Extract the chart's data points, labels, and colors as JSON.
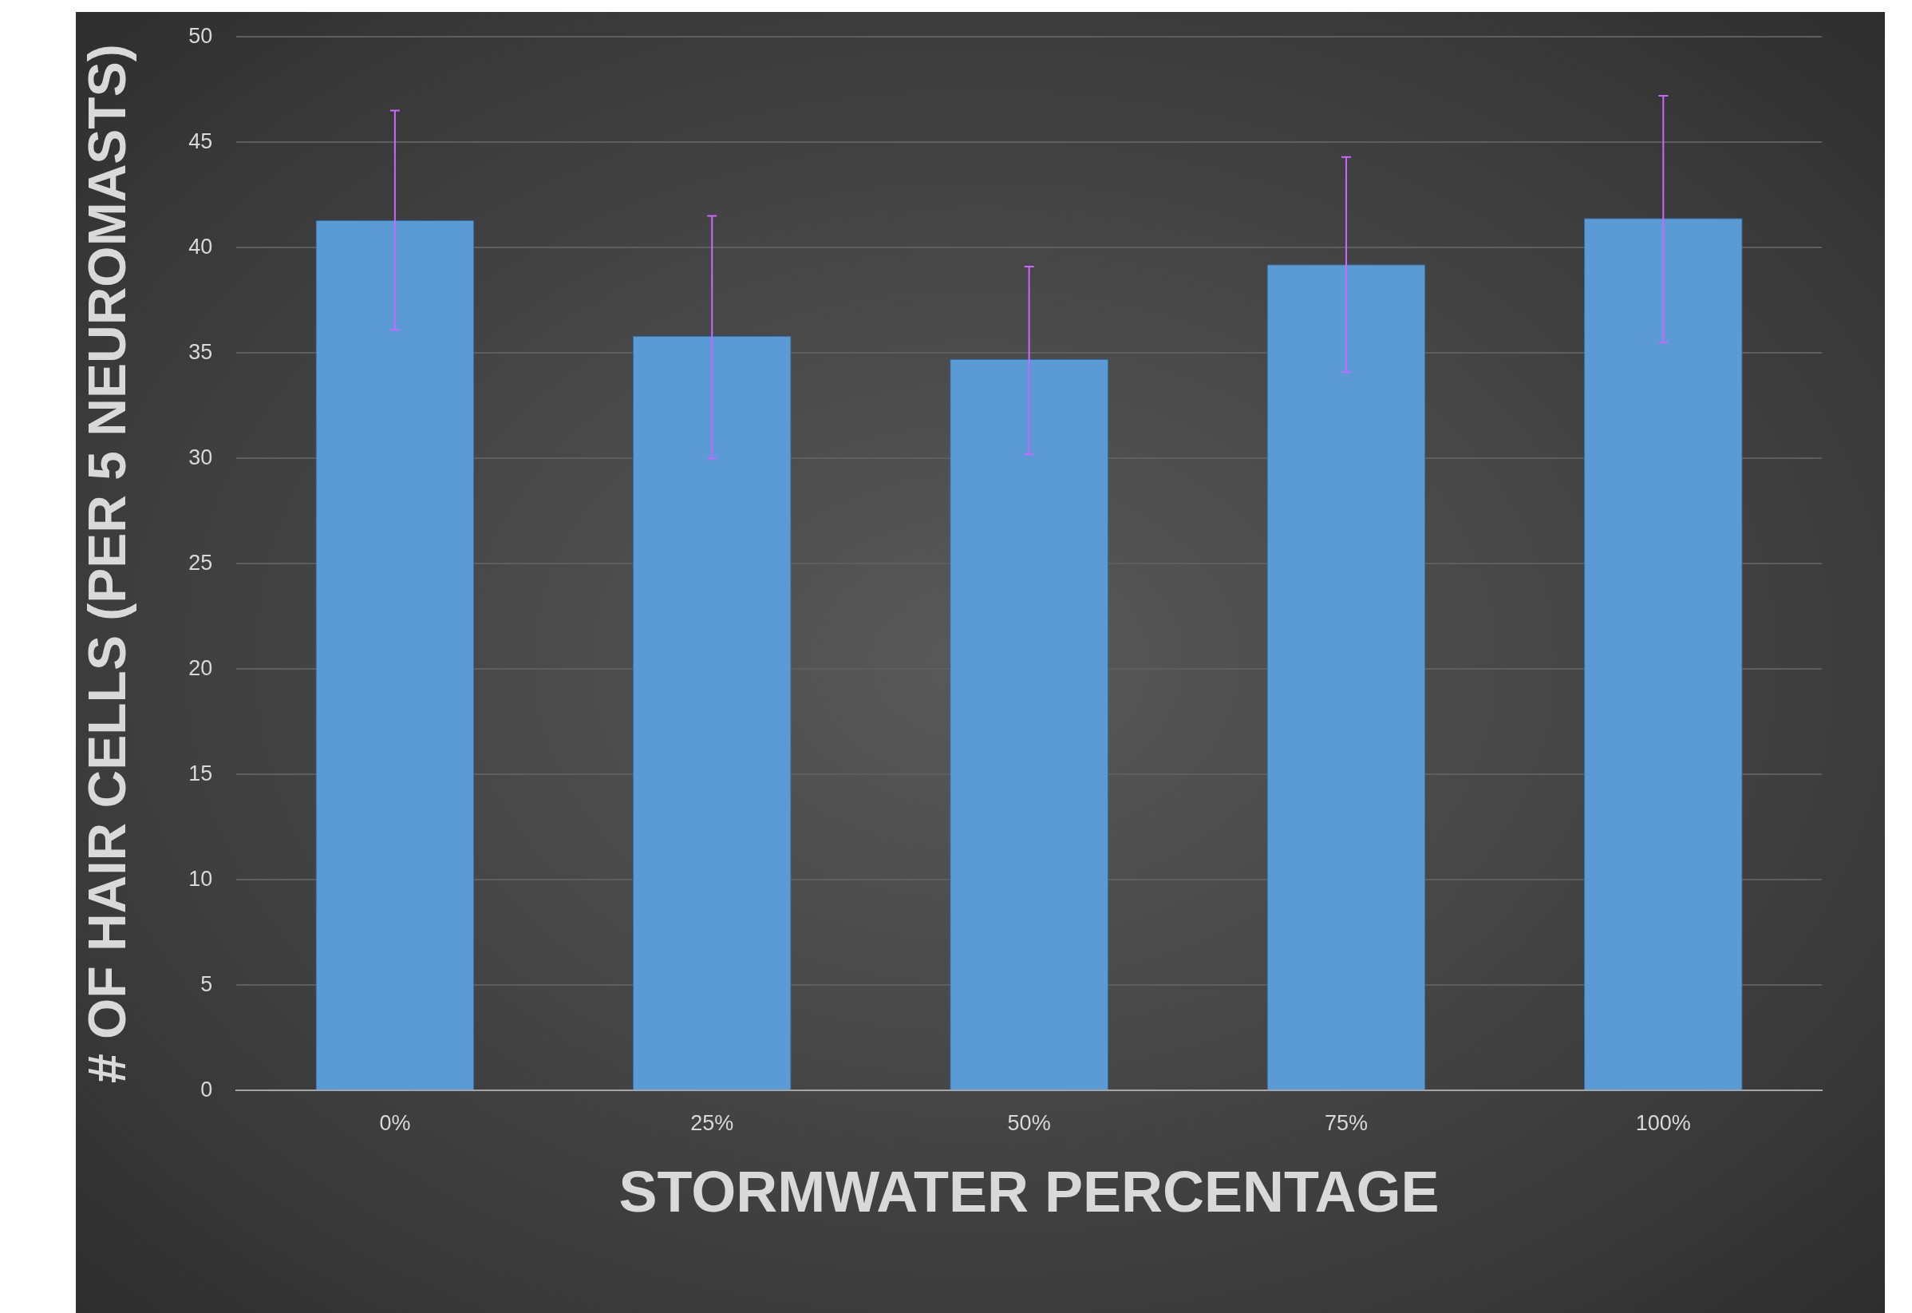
{
  "chart_data": {
    "type": "bar",
    "xlabel": "STORMWATER PERCENTAGE",
    "ylabel": "# OF HAIR CELLS (PER 5 NEUROMASTS)",
    "categories": [
      "0%",
      "25%",
      "50%",
      "75%",
      "100%"
    ],
    "series": [
      {
        "color": "#5b9bd5",
        "values": [
          41.3,
          35.8,
          34.7,
          39.2,
          41.4
        ],
        "errors": [
          [
            36.1,
            46.5
          ],
          [
            30.0,
            41.5
          ],
          [
            30.2,
            39.1
          ],
          [
            34.1,
            44.3
          ],
          [
            35.5,
            47.2
          ]
        ]
      }
    ],
    "ylim": [
      0,
      50
    ],
    "yticks": [
      0,
      5,
      10,
      15,
      20,
      25,
      30,
      35,
      40,
      45,
      50
    ],
    "grid": "y"
  }
}
